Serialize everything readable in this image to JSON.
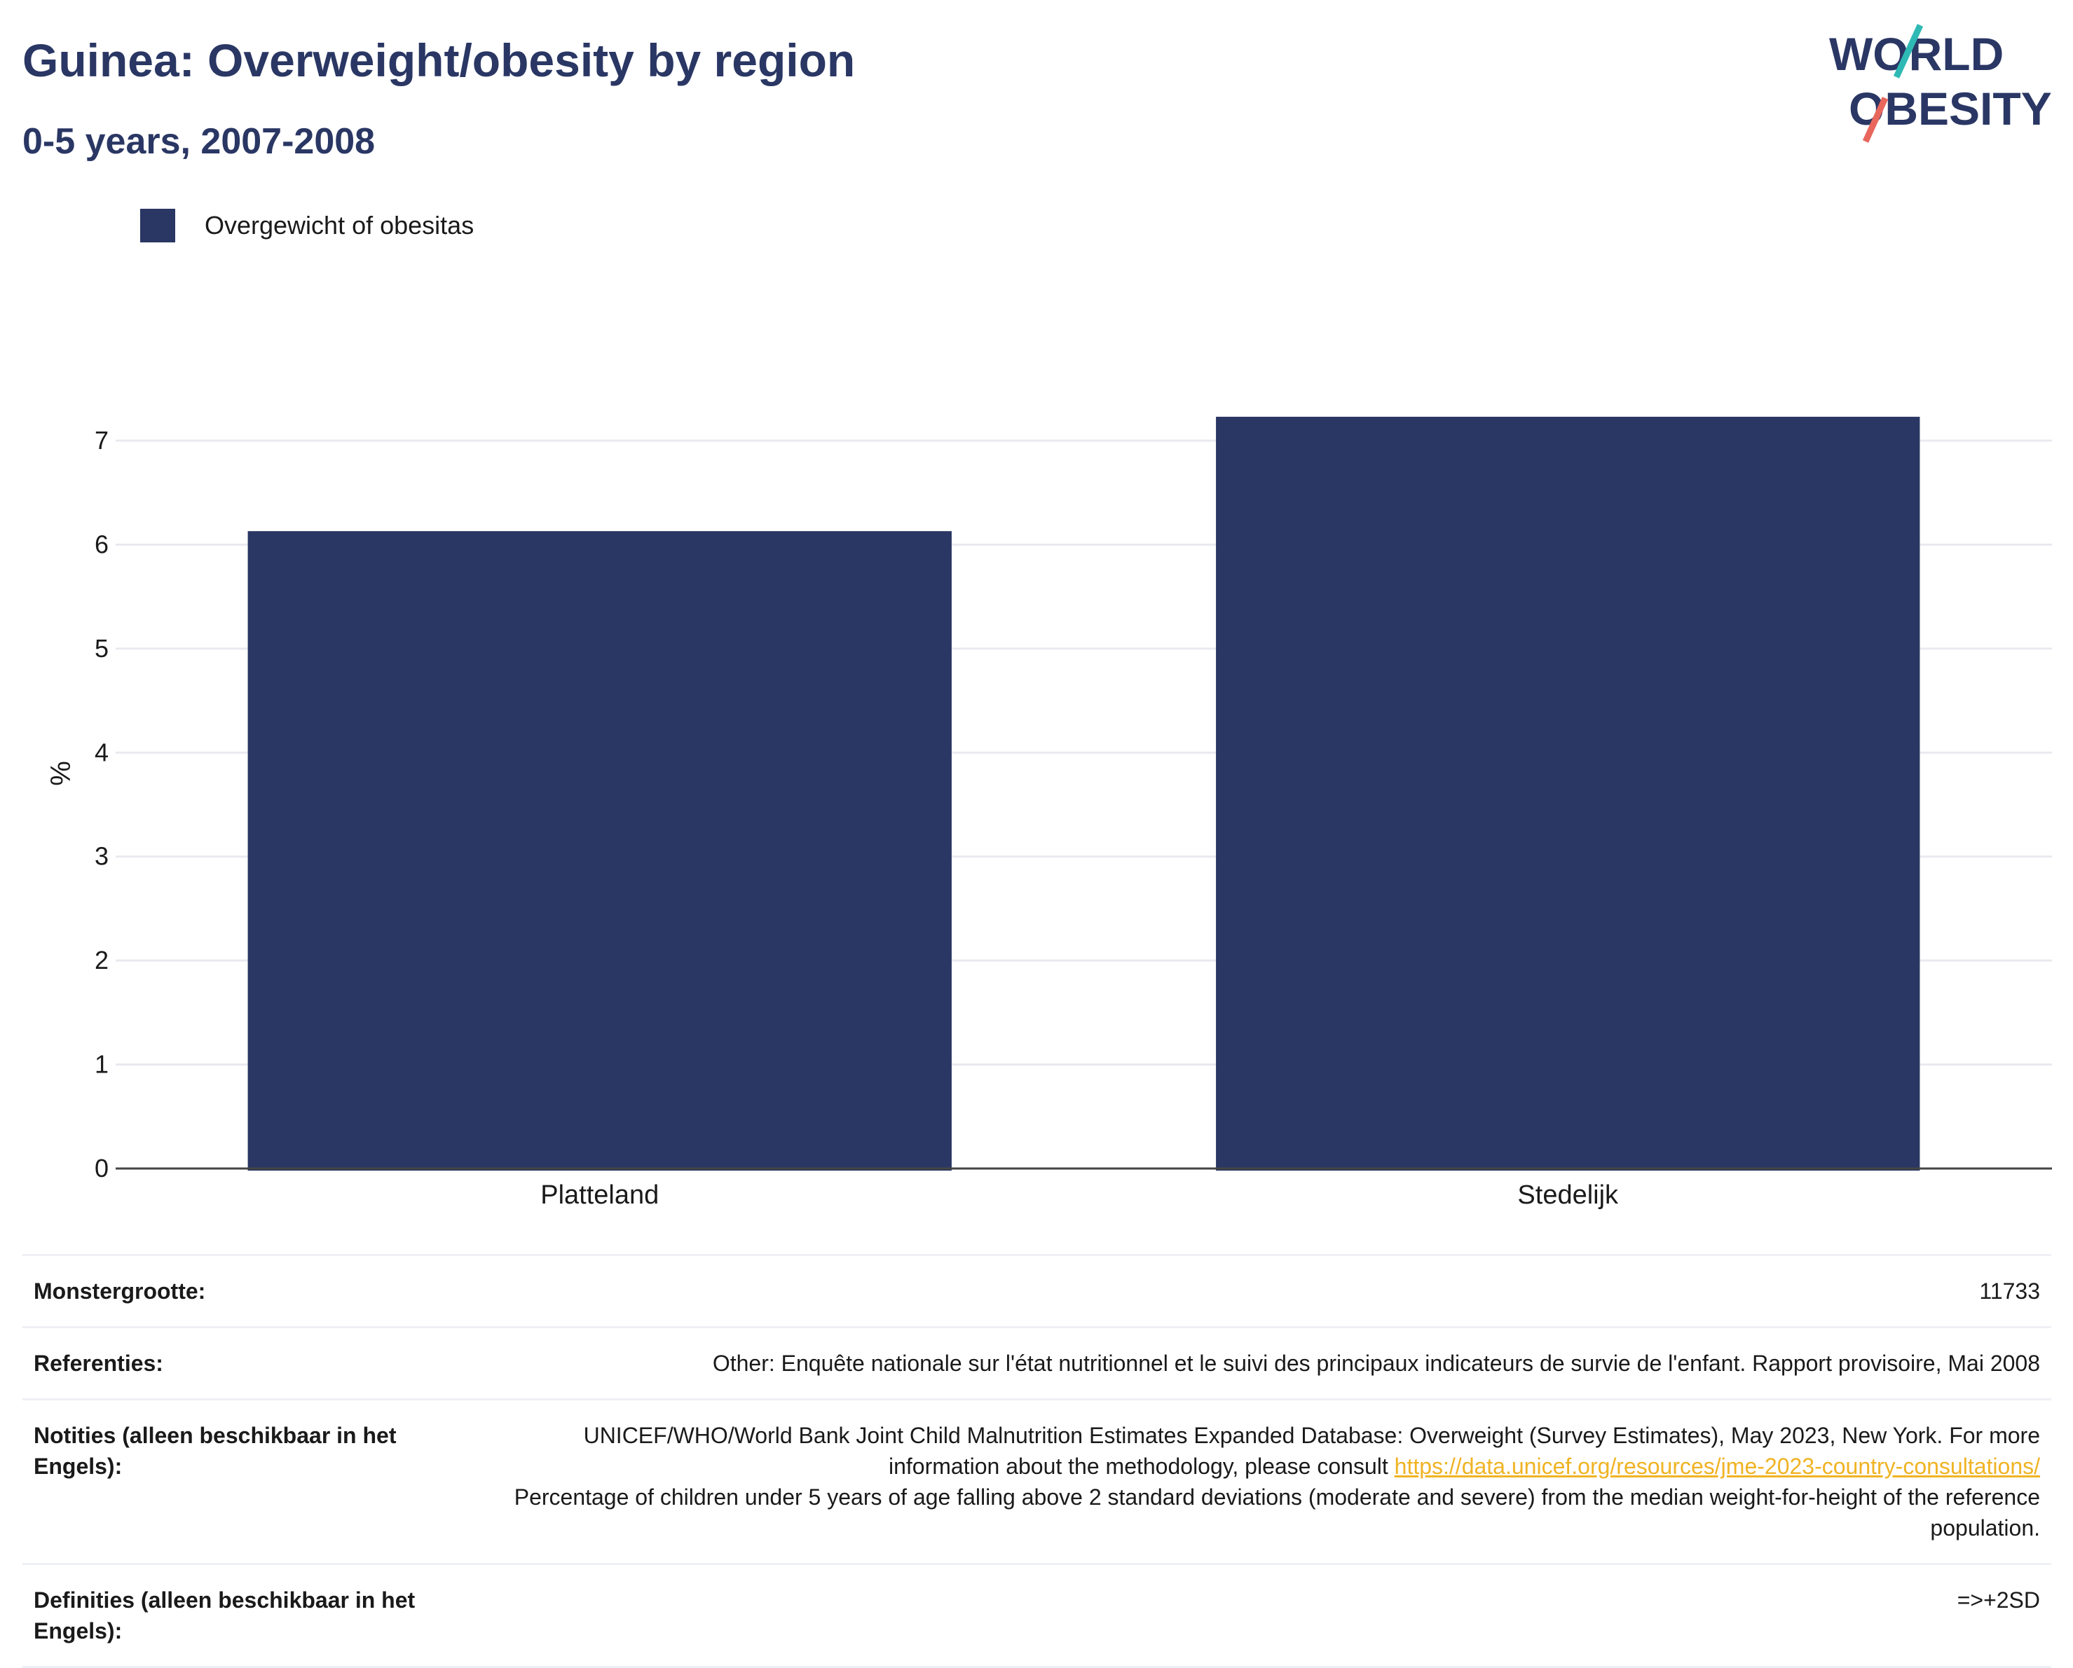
{
  "header": {
    "title": "Guinea: Overweight/obesity by region",
    "subtitle": "0-5 years, 2007-2008"
  },
  "logo": {
    "line1": "WORLD",
    "line2": "OBESITY",
    "icon": "world-obesity-logo"
  },
  "legend": {
    "label": "Overgewicht of obesitas",
    "color": "#2a3764"
  },
  "chart_data": {
    "type": "bar",
    "categories": [
      "Platteland",
      "Stedelijk"
    ],
    "series": [
      {
        "name": "Overgewicht of obesitas",
        "values": [
          6.13,
          7.23
        ]
      }
    ],
    "ylabel": "%",
    "yticks": [
      0,
      1,
      2,
      3,
      4,
      5,
      6,
      7
    ],
    "ylim": [
      0,
      7.6
    ],
    "grid": true,
    "legend_position": "top-left",
    "bar_color": "#2a3764"
  },
  "meta": {
    "sample_key": "Monstergrootte:",
    "sample_val": "11733",
    "refs_key": "Referenties:",
    "refs_val": "Other: Enquête nationale sur l'état nutritionnel et le suivi des principaux indicateurs de survie de l'enfant. Rapport provisoire, Mai 2008",
    "notes_key": "Notities (alleen beschikbaar in het Engels):",
    "notes_val_a": "UNICEF/WHO/World Bank Joint Child Malnutrition Estimates Expanded Database: Overweight (Survey Estimates), May 2023, New York. For more information about the methodology, please consult",
    "notes_link": "https://data.unicef.org/resources/jme-2023-country-consultations/",
    "notes_val_b": "Percentage of children under 5 years of age falling above 2 standard deviations (moderate and severe) from the median weight-for-height of the reference population.",
    "defs_key": "Definities (alleen beschikbaar in het Engels):",
    "defs_val": "=>+2SD"
  }
}
